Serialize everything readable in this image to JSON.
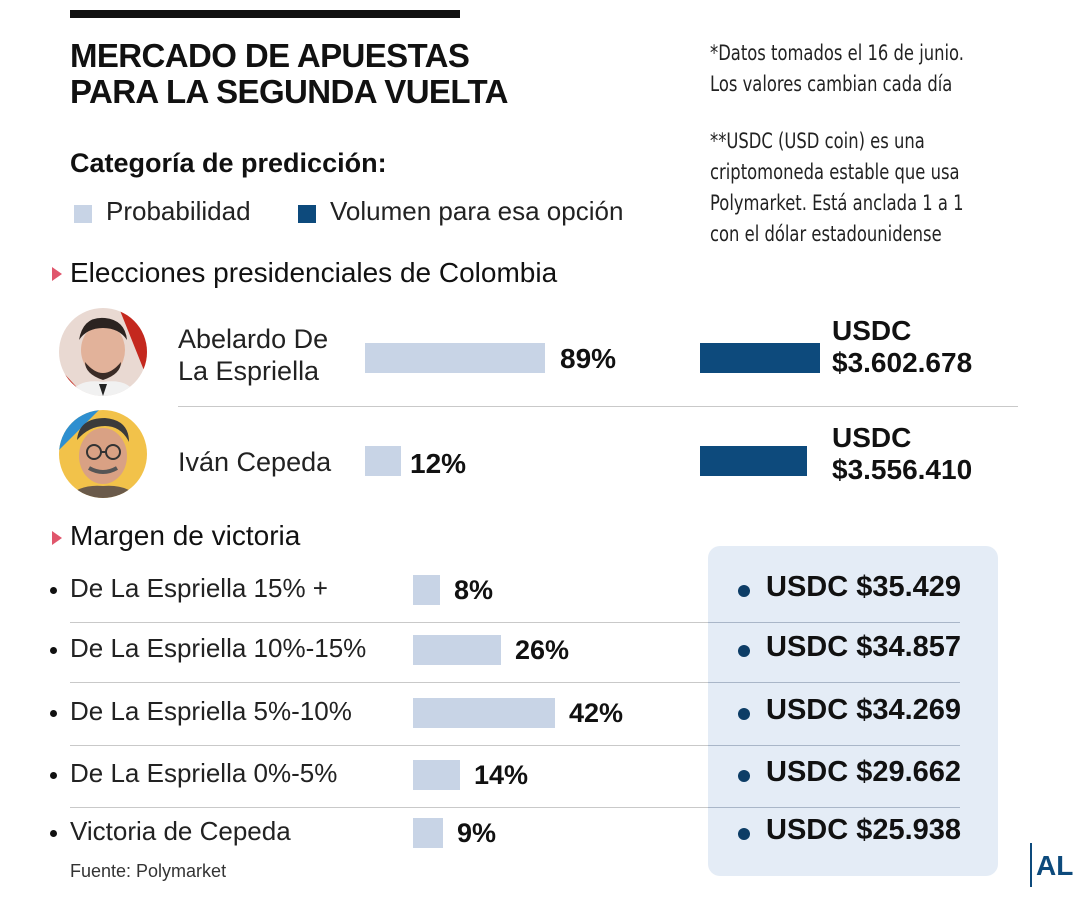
{
  "header": {
    "title_line1": "MERCADO DE APUESTAS",
    "title_line2": "PARA LA SEGUNDA VUELTA"
  },
  "notes": {
    "note1_line1": "*Datos tomados el 16 de junio.",
    "note1_line2": "Los valores cambian cada día",
    "note2_line1": "**USDC (USD coin) es una",
    "note2_line2": "criptomoneda estable que usa",
    "note2_line3": "Polymarket. Está anclada 1 a 1",
    "note2_line4": "con el dólar estadounidense"
  },
  "legend": {
    "title": "Categoría de predicción:",
    "probability_label": "Probabilidad",
    "volume_label": "Volumen para esa opción",
    "probability_color": "#c8d4e6",
    "volume_color": "#0d4a7c"
  },
  "sections": {
    "elections_title": "Elecciones presidenciales de Colombia",
    "margin_title": "Margen de victoria"
  },
  "chart_data": [
    {
      "type": "bar",
      "title": "Elecciones presidenciales de Colombia",
      "categories": [
        "Abelardo De La Espriella",
        "Iván Cepeda"
      ],
      "name_lines": [
        [
          "Abelardo De",
          "La Espriella"
        ],
        [
          "Iván Cepeda"
        ]
      ],
      "series": [
        {
          "name": "Probabilidad",
          "values": [
            89,
            12
          ],
          "labels": [
            "89%",
            "12%"
          ]
        },
        {
          "name": "Volumen para esa opción",
          "values": [
            3602678,
            3556410
          ],
          "labels": [
            [
              "USDC",
              "$3.602.678"
            ],
            [
              "USDC",
              "$3.556.410"
            ]
          ]
        }
      ]
    },
    {
      "type": "bar",
      "title": "Margen de victoria",
      "categories": [
        "De La Espriella 15% +",
        "De La Espriella 10%-15%",
        "De La Espriella 5%-10%",
        "De La Espriella 0%-5%",
        "Victoria de Cepeda"
      ],
      "series": [
        {
          "name": "Probabilidad",
          "values": [
            8,
            26,
            42,
            14,
            9
          ],
          "labels": [
            "8%",
            "26%",
            "42%",
            "14%",
            "9%"
          ]
        },
        {
          "name": "Volumen para esa opción",
          "values": [
            35429,
            34857,
            34269,
            29662,
            25938
          ],
          "labels": [
            "USDC $35.429",
            "USDC $34.857",
            "USDC $34.269",
            "USDC $29.662",
            "USDC $25.938"
          ]
        }
      ]
    }
  ],
  "footer": {
    "source": "Fuente: Polymarket",
    "logo": "AL"
  }
}
